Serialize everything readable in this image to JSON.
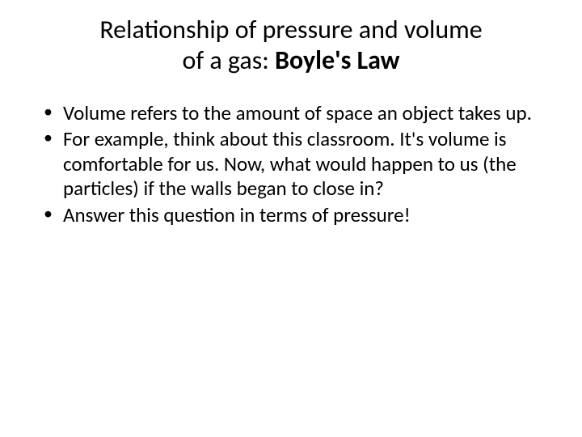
{
  "title": {
    "line1": "Relationship of pressure and volume",
    "line2_plain": "of a gas: ",
    "line2_bold": "Boyle's Law",
    "font_size": 32,
    "color": "#000000",
    "alignment": "center"
  },
  "bullets": [
    "Volume refers to the amount of space an object takes up.",
    "For example, think about this classroom. It's volume is comfortable for us. Now, what would happen to us (the particles) if the walls began to close in?",
    "Answer this question in terms of pressure!"
  ],
  "body": {
    "font_size": 25,
    "line_height": 1.22,
    "color": "#000000",
    "bullet_char": "•"
  },
  "background_color": "#ffffff"
}
